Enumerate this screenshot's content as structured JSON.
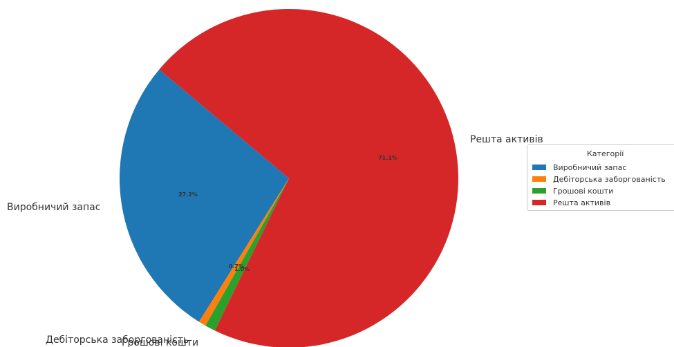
{
  "chart_data": {
    "type": "pie",
    "categories": [
      "Виробничий запас",
      "Дебіторська заборгованість",
      "Грошові кошти",
      "Решта активів"
    ],
    "values": [
      27.2,
      0.7,
      1.0,
      71.1
    ],
    "percent_labels": [
      "27.2%",
      "0.7%",
      "1.0%",
      "71.1%"
    ],
    "colors": [
      "#1f77b4",
      "#ff7f0e",
      "#2ca02c",
      "#d62728"
    ],
    "legend": {
      "title": "Категорії",
      "placement": "right",
      "entries": [
        "Виробничий запас",
        "Дебіторська заборгованість",
        "Грошові кошти",
        "Решта активів"
      ]
    }
  }
}
